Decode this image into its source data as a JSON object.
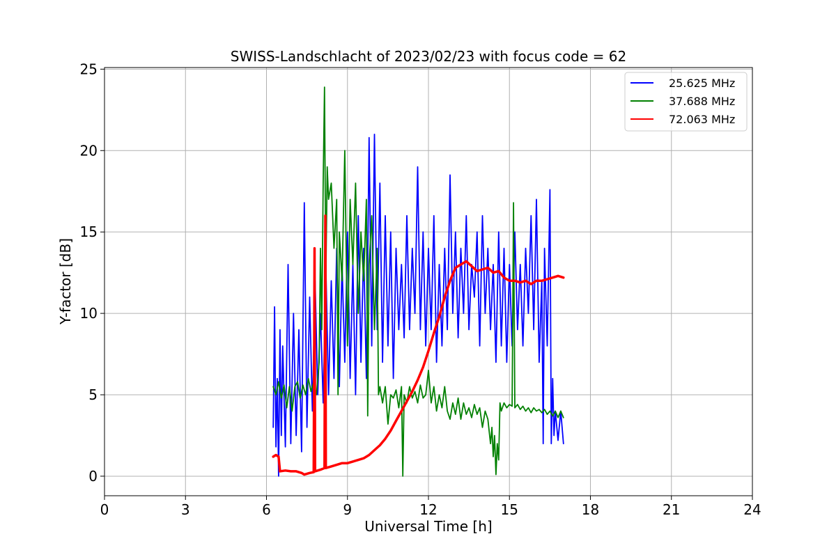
{
  "chart_data": {
    "type": "line",
    "title": "SWISS-Landschlacht of 2023/02/23 with focus code = 62",
    "xlabel": "Universal Time [h]",
    "ylabel": "Y-factor [dB]",
    "xlim": [
      0,
      24
    ],
    "ylim": [
      -1.2,
      25.1
    ],
    "x_ticks": [
      0,
      3,
      6,
      9,
      12,
      15,
      18,
      21,
      24
    ],
    "y_ticks": [
      0,
      5,
      10,
      15,
      20,
      25
    ],
    "grid": true,
    "legend_position": "top-right",
    "series": [
      {
        "name": "25.625 MHz",
        "color": "#0000ff",
        "points": [
          [
            6.25,
            3.0
          ],
          [
            6.3,
            10.4
          ],
          [
            6.35,
            1.8
          ],
          [
            6.4,
            6.0
          ],
          [
            6.45,
            0.0
          ],
          [
            6.5,
            9.0
          ],
          [
            6.55,
            2.5
          ],
          [
            6.6,
            8.0
          ],
          [
            6.7,
            1.8
          ],
          [
            6.8,
            13.0
          ],
          [
            6.9,
            2.0
          ],
          [
            7.0,
            10.0
          ],
          [
            7.1,
            2.5
          ],
          [
            7.2,
            9.0
          ],
          [
            7.3,
            1.5
          ],
          [
            7.4,
            16.8
          ],
          [
            7.5,
            3.0
          ],
          [
            7.6,
            11.0
          ],
          [
            7.7,
            4.0
          ],
          [
            7.8,
            12.0
          ],
          [
            7.9,
            5.0
          ],
          [
            8.0,
            10.0
          ],
          [
            8.1,
            4.5
          ],
          [
            8.2,
            13.0
          ],
          [
            8.3,
            5.0
          ],
          [
            8.4,
            12.0
          ],
          [
            8.5,
            6.0
          ],
          [
            8.6,
            14.0
          ],
          [
            8.7,
            5.5
          ],
          [
            8.8,
            13.0
          ],
          [
            8.9,
            7.0
          ],
          [
            9.0,
            15.0
          ],
          [
            9.1,
            6.0
          ],
          [
            9.2,
            13.0
          ],
          [
            9.3,
            5.0
          ],
          [
            9.4,
            16.0
          ],
          [
            9.5,
            7.0
          ],
          [
            9.6,
            14.0
          ],
          [
            9.7,
            6.0
          ],
          [
            9.8,
            20.8
          ],
          [
            9.9,
            8.0
          ],
          [
            10.0,
            21.0
          ],
          [
            10.1,
            9.0
          ],
          [
            10.2,
            18.0
          ],
          [
            10.3,
            7.0
          ],
          [
            10.4,
            16.0
          ],
          [
            10.5,
            8.0
          ],
          [
            10.6,
            15.0
          ],
          [
            10.7,
            6.0
          ],
          [
            10.8,
            14.0
          ],
          [
            10.9,
            9.0
          ],
          [
            11.0,
            13.0
          ],
          [
            11.1,
            8.5
          ],
          [
            11.2,
            16.0
          ],
          [
            11.3,
            9.0
          ],
          [
            11.4,
            14.0
          ],
          [
            11.5,
            10.0
          ],
          [
            11.6,
            19.0
          ],
          [
            11.7,
            9.0
          ],
          [
            11.8,
            15.0
          ],
          [
            11.9,
            8.0
          ],
          [
            12.0,
            14.0
          ],
          [
            12.1,
            9.0
          ],
          [
            12.2,
            16.0
          ],
          [
            12.3,
            7.0
          ],
          [
            12.4,
            13.0
          ],
          [
            12.5,
            8.0
          ],
          [
            12.6,
            14.0
          ],
          [
            12.7,
            9.0
          ],
          [
            12.8,
            18.5
          ],
          [
            12.9,
            10.0
          ],
          [
            13.0,
            15.0
          ],
          [
            13.1,
            8.5
          ],
          [
            13.2,
            14.0
          ],
          [
            13.3,
            10.0
          ],
          [
            13.4,
            16.0
          ],
          [
            13.5,
            9.0
          ],
          [
            13.6,
            13.0
          ],
          [
            13.7,
            11.0
          ],
          [
            13.8,
            15.0
          ],
          [
            13.9,
            8.0
          ],
          [
            14.0,
            16.0
          ],
          [
            14.1,
            10.0
          ],
          [
            14.2,
            14.0
          ],
          [
            14.3,
            9.0
          ],
          [
            14.4,
            13.0
          ],
          [
            14.5,
            7.0
          ],
          [
            14.6,
            15.0
          ],
          [
            14.7,
            8.0
          ],
          [
            14.8,
            14.0
          ],
          [
            14.9,
            7.0
          ],
          [
            15.0,
            13.0
          ],
          [
            15.1,
            8.0
          ],
          [
            15.2,
            15.0
          ],
          [
            15.3,
            9.0
          ],
          [
            15.4,
            13.0
          ],
          [
            15.5,
            8.0
          ],
          [
            15.6,
            14.0
          ],
          [
            15.7,
            10.0
          ],
          [
            15.8,
            16.0
          ],
          [
            15.9,
            9.0
          ],
          [
            16.0,
            17.0
          ],
          [
            16.1,
            7.0
          ],
          [
            16.2,
            12.0
          ],
          [
            16.25,
            2.0
          ],
          [
            16.3,
            14.0
          ],
          [
            16.4,
            8.0
          ],
          [
            16.5,
            17.6
          ],
          [
            16.55,
            2.0
          ],
          [
            16.6,
            6.0
          ],
          [
            16.65,
            2.5
          ],
          [
            16.7,
            4.0
          ],
          [
            16.8,
            2.2
          ],
          [
            16.9,
            4.0
          ],
          [
            17.0,
            2.0
          ]
        ]
      },
      {
        "name": "37.688 MHz",
        "color": "#008000",
        "points": [
          [
            6.25,
            5.5
          ],
          [
            6.35,
            5.0
          ],
          [
            6.45,
            5.8
          ],
          [
            6.55,
            4.8
          ],
          [
            6.65,
            5.6
          ],
          [
            6.75,
            4.2
          ],
          [
            6.85,
            5.5
          ],
          [
            6.95,
            4.0
          ],
          [
            7.05,
            5.5
          ],
          [
            7.15,
            5.8
          ],
          [
            7.25,
            4.8
          ],
          [
            7.35,
            5.6
          ],
          [
            7.45,
            5.0
          ],
          [
            7.55,
            6.0
          ],
          [
            7.65,
            5.2
          ],
          [
            7.75,
            5.8
          ],
          [
            7.85,
            5.0
          ],
          [
            7.95,
            7.0
          ],
          [
            8.0,
            14.0
          ],
          [
            8.05,
            9.0
          ],
          [
            8.1,
            18.0
          ],
          [
            8.15,
            23.9
          ],
          [
            8.2,
            12.0
          ],
          [
            8.25,
            19.0
          ],
          [
            8.3,
            17.0
          ],
          [
            8.4,
            18.0
          ],
          [
            8.5,
            14.0
          ],
          [
            8.6,
            17.0
          ],
          [
            8.65,
            5.0
          ],
          [
            8.7,
            15.0
          ],
          [
            8.8,
            12.0
          ],
          [
            8.9,
            20.0
          ],
          [
            9.0,
            8.0
          ],
          [
            9.1,
            17.0
          ],
          [
            9.2,
            13.0
          ],
          [
            9.3,
            18.0
          ],
          [
            9.4,
            10.0
          ],
          [
            9.5,
            15.0
          ],
          [
            9.6,
            12.0
          ],
          [
            9.7,
            17.0
          ],
          [
            9.75,
            3.7
          ],
          [
            9.8,
            13.0
          ],
          [
            9.9,
            16.0
          ],
          [
            10.0,
            9.0
          ],
          [
            10.1,
            14.0
          ],
          [
            10.15,
            5.0
          ],
          [
            10.2,
            5.5
          ],
          [
            10.3,
            4.5
          ],
          [
            10.4,
            5.5
          ],
          [
            10.5,
            3.2
          ],
          [
            10.6,
            5.0
          ],
          [
            10.7,
            4.8
          ],
          [
            10.8,
            5.3
          ],
          [
            10.9,
            4.2
          ],
          [
            11.0,
            5.5
          ],
          [
            11.05,
            0.0
          ],
          [
            11.1,
            5.0
          ],
          [
            11.2,
            4.5
          ],
          [
            11.3,
            5.5
          ],
          [
            11.4,
            4.8
          ],
          [
            11.5,
            5.2
          ],
          [
            11.6,
            4.5
          ],
          [
            11.7,
            5.6
          ],
          [
            11.8,
            4.8
          ],
          [
            11.9,
            5.0
          ],
          [
            12.0,
            6.5
          ],
          [
            12.1,
            4.5
          ],
          [
            12.2,
            5.5
          ],
          [
            12.3,
            4.0
          ],
          [
            12.4,
            5.0
          ],
          [
            12.5,
            4.2
          ],
          [
            12.6,
            5.5
          ],
          [
            12.7,
            4.0
          ],
          [
            12.8,
            3.5
          ],
          [
            12.9,
            4.5
          ],
          [
            13.0,
            3.8
          ],
          [
            13.1,
            4.8
          ],
          [
            13.2,
            3.5
          ],
          [
            13.3,
            4.5
          ],
          [
            13.4,
            3.8
          ],
          [
            13.5,
            4.2
          ],
          [
            13.6,
            3.6
          ],
          [
            13.7,
            4.4
          ],
          [
            13.8,
            3.8
          ],
          [
            13.9,
            4.2
          ],
          [
            14.0,
            3.0
          ],
          [
            14.1,
            4.0
          ],
          [
            14.2,
            3.5
          ],
          [
            14.3,
            2.0
          ],
          [
            14.35,
            3.0
          ],
          [
            14.4,
            1.2
          ],
          [
            14.45,
            2.5
          ],
          [
            14.5,
            0.1
          ],
          [
            14.55,
            2.0
          ],
          [
            14.6,
            1.0
          ],
          [
            14.65,
            4.5
          ],
          [
            14.7,
            4.0
          ],
          [
            14.8,
            4.5
          ],
          [
            14.9,
            4.2
          ],
          [
            15.0,
            4.4
          ],
          [
            15.1,
            4.3
          ],
          [
            15.15,
            16.8
          ],
          [
            15.2,
            4.2
          ],
          [
            15.3,
            4.4
          ],
          [
            15.4,
            4.1
          ],
          [
            15.5,
            4.3
          ],
          [
            15.6,
            4.0
          ],
          [
            15.7,
            4.2
          ],
          [
            15.8,
            3.9
          ],
          [
            15.9,
            4.2
          ],
          [
            16.0,
            4.0
          ],
          [
            16.1,
            4.1
          ],
          [
            16.2,
            3.9
          ],
          [
            16.3,
            4.1
          ],
          [
            16.4,
            3.8
          ],
          [
            16.5,
            4.0
          ],
          [
            16.6,
            3.7
          ],
          [
            16.7,
            4.0
          ],
          [
            16.8,
            3.6
          ],
          [
            16.9,
            4.0
          ],
          [
            17.0,
            3.6
          ]
        ]
      },
      {
        "name": "72.063 MHz",
        "color": "#ff0000",
        "points": [
          [
            6.25,
            1.2
          ],
          [
            6.35,
            1.3
          ],
          [
            6.45,
            1.2
          ],
          [
            6.5,
            0.3
          ],
          [
            6.7,
            0.35
          ],
          [
            6.9,
            0.3
          ],
          [
            7.1,
            0.3
          ],
          [
            7.3,
            0.2
          ],
          [
            7.4,
            0.1
          ],
          [
            7.6,
            0.2
          ],
          [
            7.75,
            0.25
          ],
          [
            7.78,
            14.0
          ],
          [
            7.8,
            0.3
          ],
          [
            8.0,
            0.4
          ],
          [
            8.15,
            0.5
          ],
          [
            8.18,
            16.0
          ],
          [
            8.2,
            0.5
          ],
          [
            8.4,
            0.6
          ],
          [
            8.6,
            0.7
          ],
          [
            8.8,
            0.8
          ],
          [
            9.0,
            0.8
          ],
          [
            9.2,
            0.9
          ],
          [
            9.4,
            1.0
          ],
          [
            9.6,
            1.1
          ],
          [
            9.8,
            1.3
          ],
          [
            10.0,
            1.6
          ],
          [
            10.2,
            1.9
          ],
          [
            10.4,
            2.3
          ],
          [
            10.6,
            2.8
          ],
          [
            10.8,
            3.4
          ],
          [
            11.0,
            4.0
          ],
          [
            11.2,
            4.6
          ],
          [
            11.4,
            5.2
          ],
          [
            11.6,
            5.9
          ],
          [
            11.8,
            6.7
          ],
          [
            12.0,
            7.7
          ],
          [
            12.2,
            8.8
          ],
          [
            12.4,
            9.8
          ],
          [
            12.6,
            11.0
          ],
          [
            12.8,
            12.0
          ],
          [
            13.0,
            12.8
          ],
          [
            13.2,
            13.0
          ],
          [
            13.4,
            13.2
          ],
          [
            13.6,
            12.9
          ],
          [
            13.8,
            12.6
          ],
          [
            14.0,
            12.7
          ],
          [
            14.2,
            12.8
          ],
          [
            14.4,
            12.5
          ],
          [
            14.6,
            12.6
          ],
          [
            14.8,
            12.2
          ],
          [
            15.0,
            12.0
          ],
          [
            15.2,
            12.0
          ],
          [
            15.4,
            11.9
          ],
          [
            15.6,
            12.0
          ],
          [
            15.8,
            11.8
          ],
          [
            16.0,
            12.0
          ],
          [
            16.2,
            12.0
          ],
          [
            16.4,
            12.1
          ],
          [
            16.6,
            12.2
          ],
          [
            16.8,
            12.3
          ],
          [
            17.0,
            12.2
          ]
        ]
      }
    ]
  }
}
